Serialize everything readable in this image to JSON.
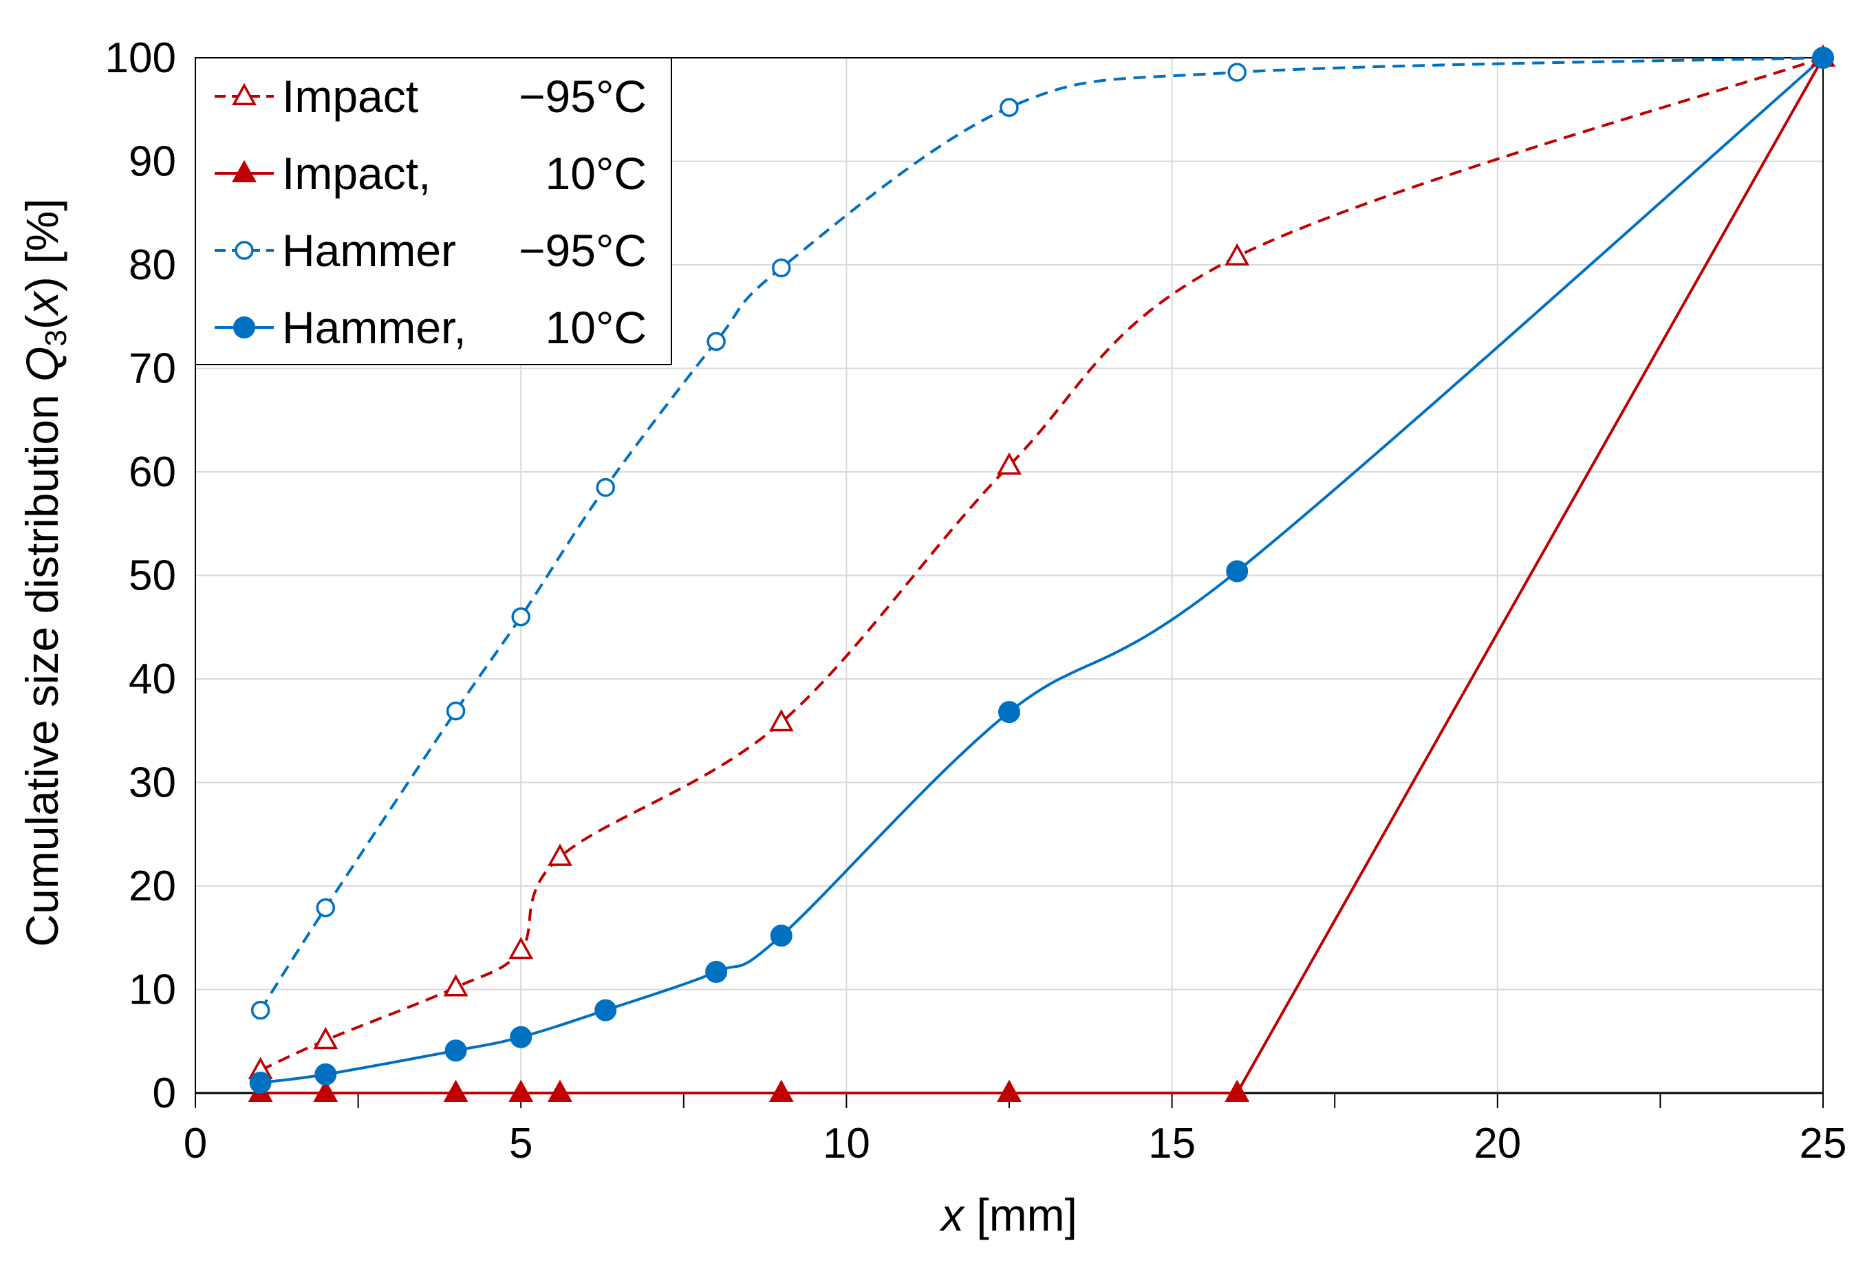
{
  "chart_data": {
    "type": "line",
    "title": "",
    "xlabel": {
      "var": "x",
      "unit": " [mm]"
    },
    "ylabel": {
      "prefix": "Cumulative size distribution ",
      "var": "Q",
      "sub": "3",
      "paren_open": "(",
      "arg": "x",
      "paren_close": ")",
      "unit": " [%]"
    },
    "xlim": [
      0,
      25
    ],
    "ylim": [
      0,
      100
    ],
    "xticks": [
      "0",
      "5",
      "10",
      "15",
      "20",
      "25"
    ],
    "yticks": [
      "0",
      "10",
      "20",
      "30",
      "40",
      "50",
      "60",
      "70",
      "80",
      "90",
      "100"
    ],
    "x_minor_step": 2.5,
    "grid": true,
    "legend_position": "top-left",
    "series": [
      {
        "name": "Impact",
        "temp": "−95°C",
        "color": "#c00000",
        "dash": true,
        "marker": "triangle-open",
        "smooth": true,
        "x": [
          1,
          2,
          4,
          5,
          5.6,
          9,
          12.5,
          16,
          25
        ],
        "y": [
          2.2,
          5.1,
          10.2,
          13.8,
          22.8,
          35.8,
          60.6,
          80.8,
          100
        ]
      },
      {
        "name": "Impact,",
        "temp": "10°C",
        "color": "#c00000",
        "dash": false,
        "marker": "triangle-filled",
        "smooth": false,
        "x": [
          1,
          2,
          4,
          5,
          5.6,
          9,
          12.5,
          16,
          25
        ],
        "y": [
          0,
          0,
          0,
          0,
          0,
          0,
          0,
          0,
          100
        ]
      },
      {
        "name": "Hammer",
        "temp": "−95°C",
        "color": "#0070c0",
        "dash": true,
        "marker": "circle-open",
        "smooth": true,
        "x": [
          1,
          2,
          4,
          5,
          6.3,
          8,
          9,
          12.5,
          16,
          25
        ],
        "y": [
          8.0,
          17.9,
          36.9,
          46.0,
          58.5,
          72.6,
          79.7,
          95.2,
          98.6,
          100
        ]
      },
      {
        "name": "Hammer,",
        "temp": "10°C",
        "color": "#0070c0",
        "dash": false,
        "marker": "circle-filled",
        "smooth": true,
        "x": [
          1,
          2,
          4,
          5,
          6.3,
          8,
          9,
          12.5,
          16,
          25
        ],
        "y": [
          1.0,
          1.8,
          4.1,
          5.4,
          8.0,
          11.7,
          15.2,
          36.8,
          50.4,
          100
        ]
      }
    ]
  }
}
